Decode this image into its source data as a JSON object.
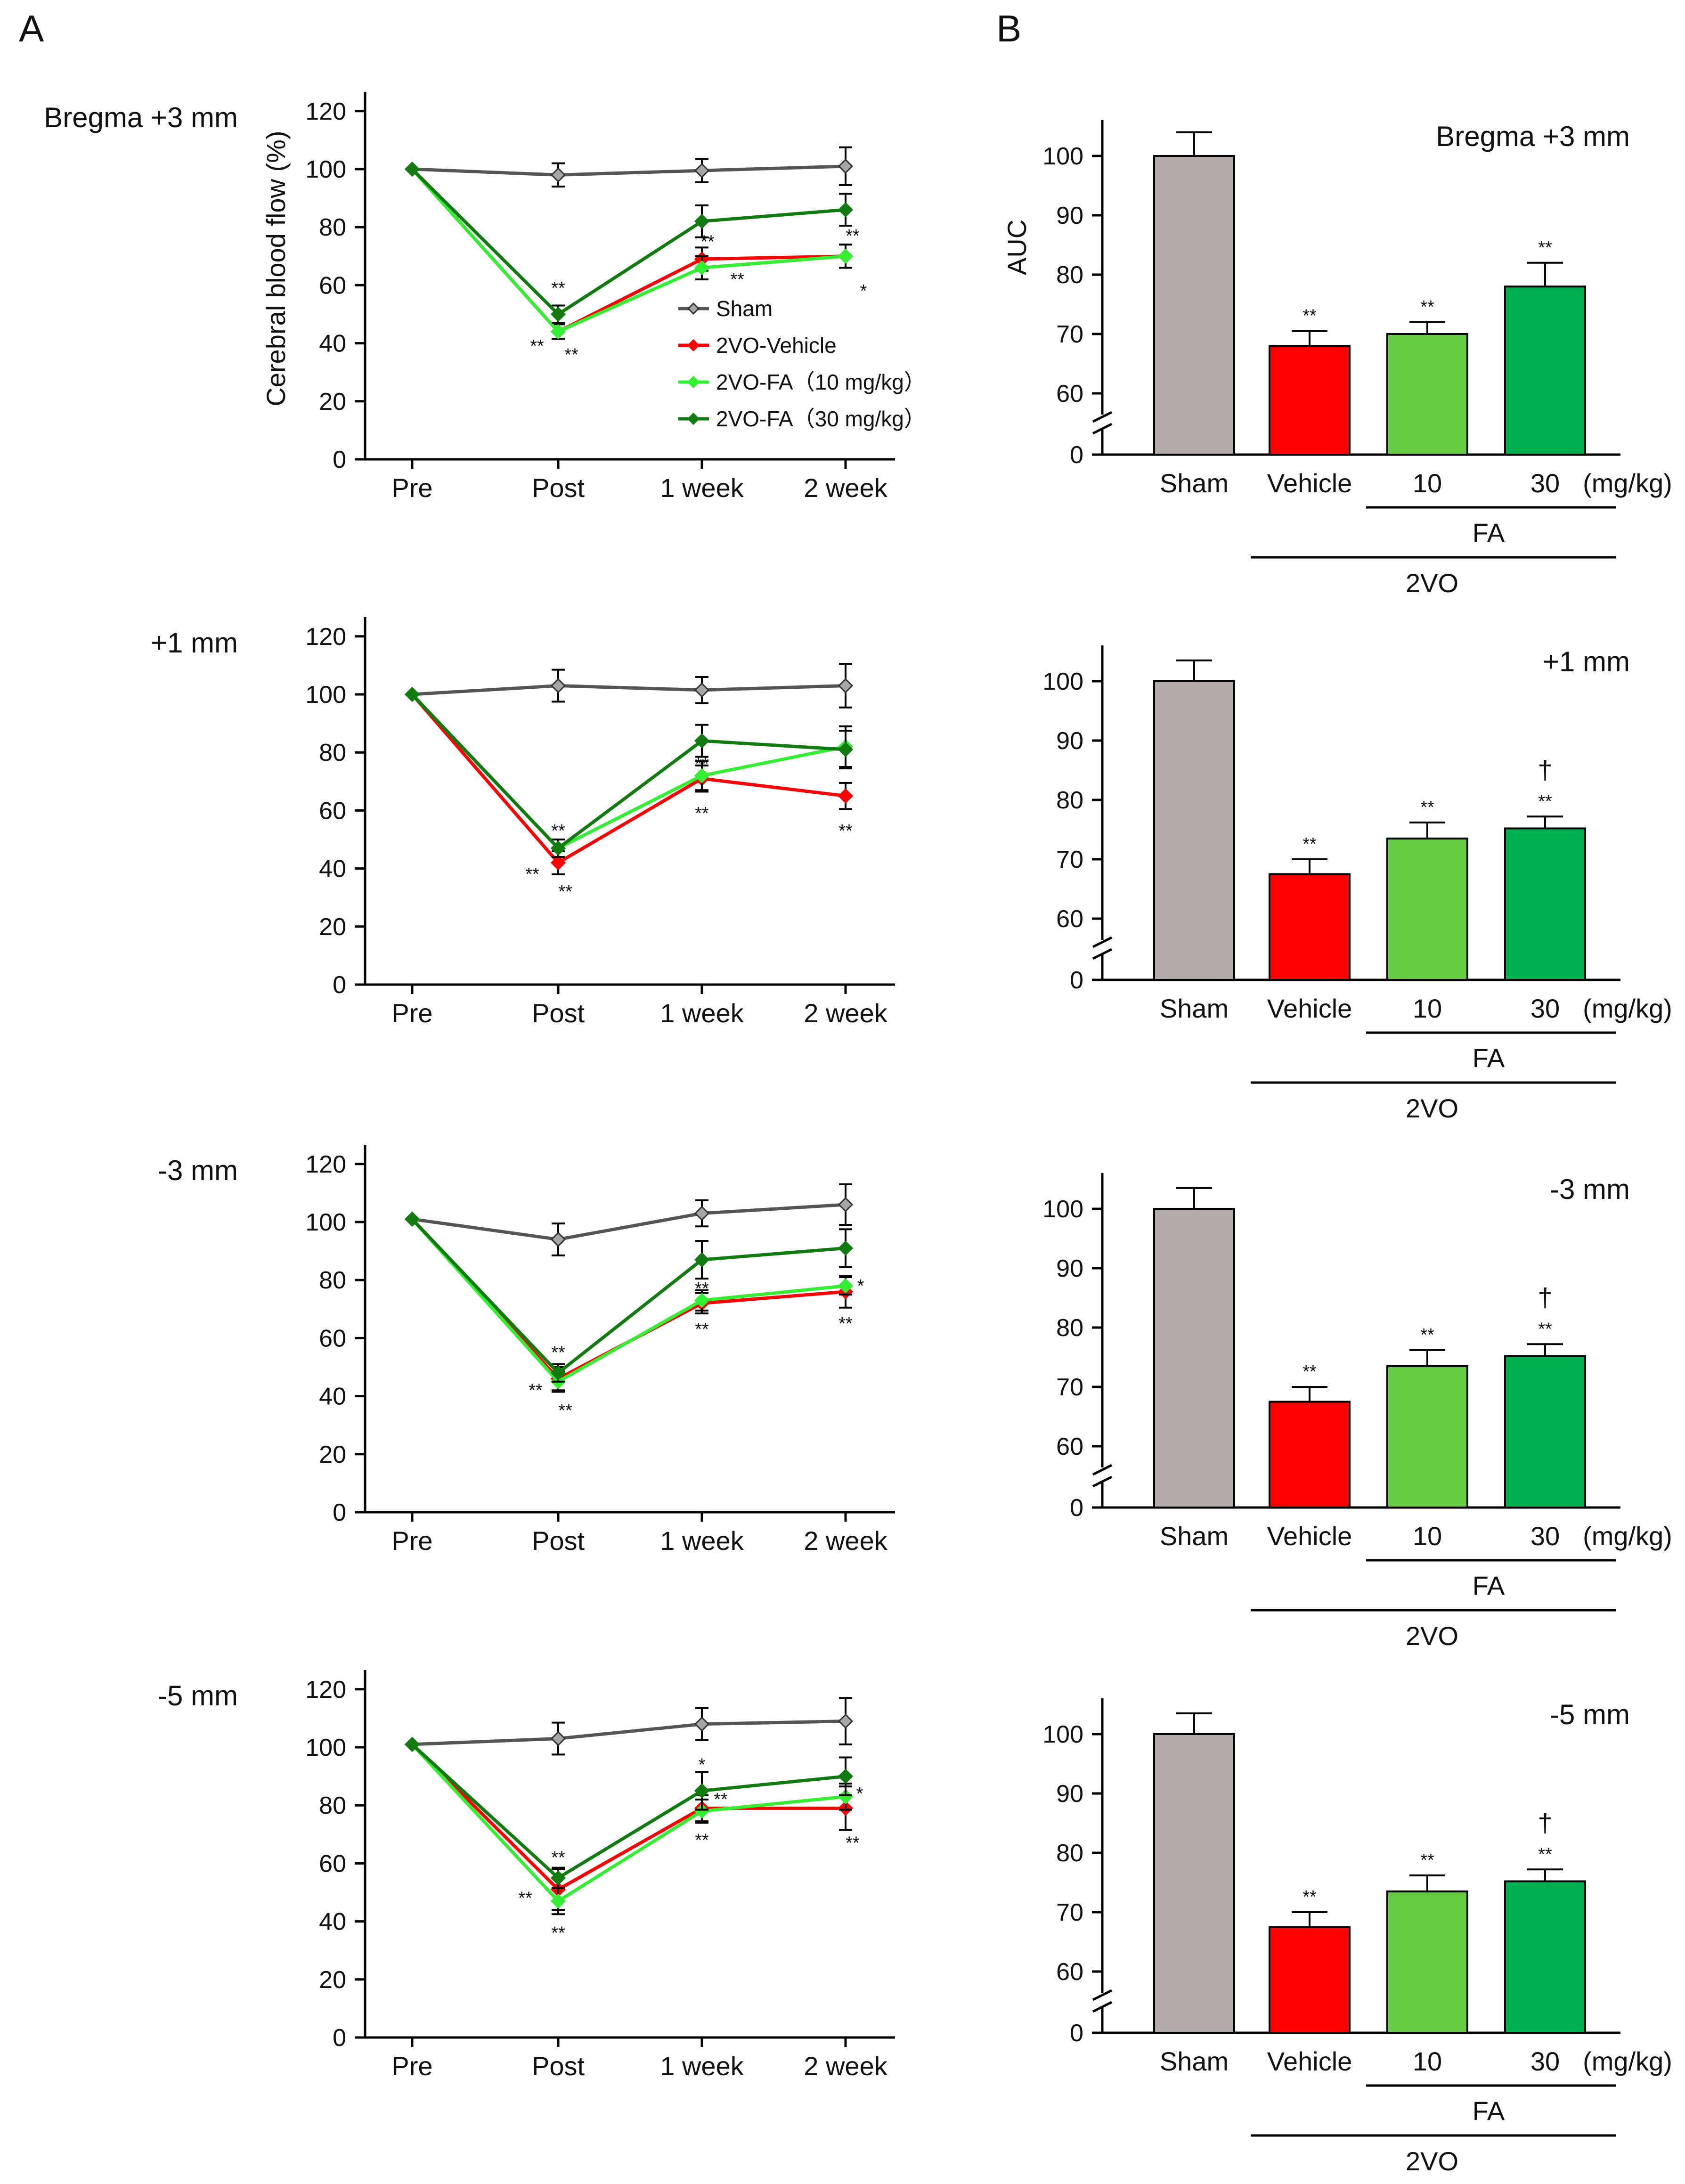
{
  "panel_labels": [
    "A",
    "B"
  ],
  "colors": {
    "sham": "#555555",
    "sham_marker": "#a6a6a6",
    "vehicle": "#ff0000",
    "fa10": "#33ee33",
    "fa30": "#117a11",
    "bar_sham": "#b3aaaa",
    "bar_vehicle": "#ff0000",
    "bar_fa10": "#66cc44",
    "bar_fa30": "#00b050"
  },
  "chart_data": [
    {
      "type": "line",
      "panel": "A",
      "region": "Bregma +3 mm",
      "ylabel": "Cerebral blood flow (%)",
      "categories": [
        "Pre",
        "Post",
        "1 week",
        "2 week"
      ],
      "yticks": [
        0,
        20,
        40,
        60,
        80,
        100,
        120
      ],
      "ylim": [
        0,
        125
      ],
      "legend": [
        "Sham",
        "2VO-Vehicle",
        "2VO-FA（10 mg/kg）",
        "2VO-FA（30 mg/kg）"
      ],
      "series": [
        {
          "name": "Sham",
          "key": "sham",
          "values": [
            100,
            98,
            99.5,
            101
          ],
          "err": [
            0,
            4,
            4,
            6.5
          ]
        },
        {
          "name": "2VO-Vehicle",
          "key": "vehicle",
          "values": [
            100,
            44,
            69,
            70
          ],
          "err": [
            0,
            2.5,
            4,
            4
          ]
        },
        {
          "name": "2VO-FA (10 mg/kg)",
          "key": "fa10",
          "values": [
            100,
            44,
            66,
            70
          ],
          "err": [
            0,
            2.5,
            4,
            4
          ]
        },
        {
          "name": "2VO-FA (30 mg/kg)",
          "key": "fa30",
          "values": [
            100,
            50,
            82,
            86
          ],
          "err": [
            0,
            3,
            5.5,
            5.5
          ]
        }
      ],
      "annotations": [
        {
          "text": "**",
          "cat": 1,
          "y": 57,
          "dx": 0
        },
        {
          "text": "**",
          "cat": 1,
          "y": 37,
          "dx": -45
        },
        {
          "text": "**",
          "cat": 1,
          "y": 34,
          "dx": 28
        },
        {
          "text": "**",
          "cat": 2,
          "y": 73,
          "dx": 12
        },
        {
          "text": "**",
          "cat": 2,
          "y": 60,
          "dx": 75
        },
        {
          "text": "**",
          "cat": 3,
          "y": 75,
          "dx": 15
        },
        {
          "text": "*",
          "cat": 3,
          "y": 56,
          "dx": 38
        }
      ]
    },
    {
      "type": "line",
      "panel": "A",
      "region": "+1 mm",
      "ylabel": "",
      "categories": [
        "Pre",
        "Post",
        "1 week",
        "2 week"
      ],
      "yticks": [
        0,
        20,
        40,
        60,
        80,
        100,
        120
      ],
      "ylim": [
        0,
        125
      ],
      "series": [
        {
          "name": "Sham",
          "key": "sham",
          "values": [
            100,
            103,
            101.5,
            103
          ],
          "err": [
            0,
            5.5,
            4.5,
            7.5
          ]
        },
        {
          "name": "2VO-Vehicle",
          "key": "vehicle",
          "values": [
            100,
            42,
            71,
            65
          ],
          "err": [
            0,
            4,
            4.5,
            4.5
          ]
        },
        {
          "name": "2VO-FA (10 mg/kg)",
          "key": "fa10",
          "values": [
            100,
            47,
            72,
            82
          ],
          "err": [
            0,
            3,
            5,
            7
          ]
        },
        {
          "name": "2VO-FA (30 mg/kg)",
          "key": "fa30",
          "values": [
            100,
            47,
            84,
            81
          ],
          "err": [
            0,
            3,
            5.5,
            6.5
          ]
        }
      ],
      "annotations": [
        {
          "text": "**",
          "cat": 1,
          "y": 51,
          "dx": 0
        },
        {
          "text": "**",
          "cat": 1,
          "y": 36,
          "dx": -55
        },
        {
          "text": "**",
          "cat": 1,
          "y": 30,
          "dx": 15
        },
        {
          "text": "**",
          "cat": 2,
          "y": 74,
          "dx": 0
        },
        {
          "text": "**",
          "cat": 2,
          "y": 57,
          "dx": 0
        },
        {
          "text": "**",
          "cat": 3,
          "y": 51,
          "dx": 0
        }
      ]
    },
    {
      "type": "line",
      "panel": "A",
      "region": "-3 mm",
      "ylabel": "",
      "categories": [
        "Pre",
        "Post",
        "1 week",
        "2 week"
      ],
      "yticks": [
        0,
        20,
        40,
        60,
        80,
        100,
        120
      ],
      "ylim": [
        0,
        125
      ],
      "series": [
        {
          "name": "Sham",
          "key": "sham",
          "values": [
            101,
            94,
            103,
            106
          ],
          "err": [
            0,
            5.5,
            4.5,
            7
          ]
        },
        {
          "name": "2VO-Vehicle",
          "key": "vehicle",
          "values": [
            101,
            46,
            72,
            76
          ],
          "err": [
            0,
            4,
            3.5,
            5.5
          ]
        },
        {
          "name": "2VO-FA (10 mg/kg)",
          "key": "fa10",
          "values": [
            101,
            45,
            73,
            78
          ],
          "err": [
            0,
            3.5,
            3.5,
            3
          ]
        },
        {
          "name": "2VO-FA (30 mg/kg)",
          "key": "fa30",
          "values": [
            101,
            48,
            87,
            91
          ],
          "err": [
            0,
            3,
            6.5,
            6.5
          ]
        }
      ],
      "annotations": [
        {
          "text": "**",
          "cat": 1,
          "y": 53,
          "dx": 0
        },
        {
          "text": "**",
          "cat": 1,
          "y": 40,
          "dx": -48
        },
        {
          "text": "**",
          "cat": 1,
          "y": 33,
          "dx": 15
        },
        {
          "text": "**",
          "cat": 2,
          "y": 75,
          "dx": 0
        },
        {
          "text": "**",
          "cat": 2,
          "y": 61,
          "dx": 0
        },
        {
          "text": "*",
          "cat": 3,
          "y": 76,
          "dx": 32
        },
        {
          "text": "**",
          "cat": 3,
          "y": 63,
          "dx": 0
        }
      ]
    },
    {
      "type": "line",
      "panel": "A",
      "region": "-5 mm",
      "ylabel": "",
      "categories": [
        "Pre",
        "Post",
        "1 week",
        "2 week"
      ],
      "yticks": [
        0,
        20,
        40,
        60,
        80,
        100,
        120
      ],
      "ylim": [
        0,
        125
      ],
      "series": [
        {
          "name": "Sham",
          "key": "sham",
          "values": [
            101,
            103,
            108,
            109
          ],
          "err": [
            0,
            5.5,
            5.5,
            8
          ]
        },
        {
          "name": "2VO-Vehicle",
          "key": "vehicle",
          "values": [
            101,
            51,
            79,
            79
          ],
          "err": [
            0,
            7,
            4.5,
            7.5
          ]
        },
        {
          "name": "2VO-FA (10 mg/kg)",
          "key": "fa10",
          "values": [
            101,
            47,
            78,
            83
          ],
          "err": [
            0,
            4.5,
            4,
            4.5
          ]
        },
        {
          "name": "2VO-FA (30 mg/kg)",
          "key": "fa30",
          "values": [
            101,
            55,
            85,
            90
          ],
          "err": [
            0,
            3.5,
            6.5,
            6.5
          ]
        }
      ],
      "annotations": [
        {
          "text": "**",
          "cat": 1,
          "y": 60,
          "dx": 0
        },
        {
          "text": "**",
          "cat": 1,
          "y": 46,
          "dx": -70
        },
        {
          "text": "**",
          "cat": 1,
          "y": 34,
          "dx": 0
        },
        {
          "text": "*",
          "cat": 2,
          "y": 92,
          "dx": 0
        },
        {
          "text": "**",
          "cat": 2,
          "y": 80,
          "dx": 40
        },
        {
          "text": "**",
          "cat": 2,
          "y": 66,
          "dx": 0
        },
        {
          "text": "*",
          "cat": 3,
          "y": 82,
          "dx": 30
        },
        {
          "text": "**",
          "cat": 3,
          "y": 65,
          "dx": 15
        }
      ]
    },
    {
      "type": "bar",
      "panel": "B",
      "region": "Bregma +3 mm",
      "ylabel": "AUC",
      "categories": [
        "Sham",
        "Vehicle",
        "10",
        "30"
      ],
      "unit_label": "(mg/kg)",
      "group_labels": [
        "FA",
        "2VO"
      ],
      "yticks": [
        0,
        60,
        70,
        80,
        90,
        100
      ],
      "axis_break": [
        0,
        55
      ],
      "values": [
        100,
        68,
        70,
        78
      ],
      "err": [
        4,
        2.5,
        2,
        4
      ],
      "significance": [
        "",
        "**",
        "**",
        "**"
      ]
    },
    {
      "type": "bar",
      "panel": "B",
      "region": "+1 mm",
      "ylabel": "",
      "categories": [
        "Sham",
        "Vehicle",
        "10",
        "30"
      ],
      "unit_label": "(mg/kg)",
      "group_labels": [
        "FA",
        "2VO"
      ],
      "yticks": [
        0,
        60,
        70,
        80,
        90,
        100
      ],
      "axis_break": [
        0,
        55
      ],
      "values": [
        100,
        67.5,
        73.5,
        75.2
      ],
      "err": [
        3.5,
        2.5,
        2.7,
        2
      ],
      "significance": [
        "",
        "**",
        "**",
        "† **"
      ]
    },
    {
      "type": "bar",
      "panel": "B",
      "region": "-3 mm",
      "ylabel": "",
      "categories": [
        "Sham",
        "Vehicle",
        "10",
        "30"
      ],
      "unit_label": "(mg/kg)",
      "group_labels": [
        "FA",
        "2VO"
      ],
      "yticks": [
        0,
        60,
        70,
        80,
        90,
        100
      ],
      "axis_break": [
        0,
        55
      ],
      "values": [
        100,
        67.5,
        73.5,
        75.2
      ],
      "err": [
        3.5,
        2.5,
        2.7,
        2
      ],
      "significance": [
        "",
        "**",
        "**",
        "† **"
      ]
    },
    {
      "type": "bar",
      "panel": "B",
      "region": "-5 mm",
      "ylabel": "",
      "categories": [
        "Sham",
        "Vehicle",
        "10",
        "30"
      ],
      "unit_label": "(mg/kg)",
      "group_labels": [
        "FA",
        "2VO"
      ],
      "yticks": [
        0,
        60,
        70,
        80,
        90,
        100
      ],
      "axis_break": [
        0,
        55
      ],
      "values": [
        100,
        67.5,
        73.5,
        75.2
      ],
      "err": [
        3.5,
        2.5,
        2.7,
        2
      ],
      "significance": [
        "",
        "**",
        "**",
        "† **"
      ]
    }
  ]
}
